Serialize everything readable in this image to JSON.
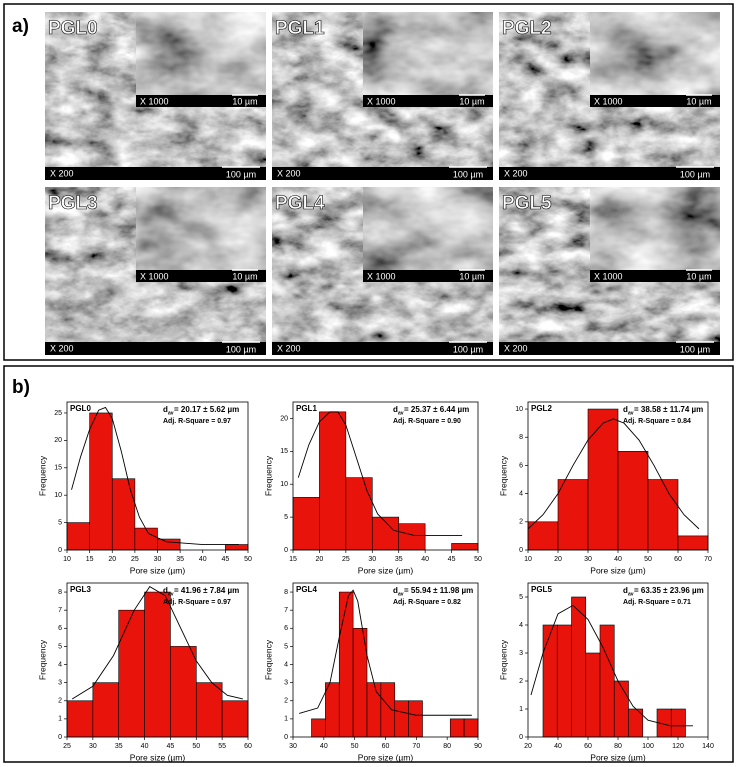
{
  "panels": {
    "a": "a)",
    "b": "b)"
  },
  "panel_a": {
    "images": [
      {
        "name": "PGL0",
        "inset_mag": "X 1000",
        "inset_scale": "10 µm",
        "mag": "X 200",
        "scale": "100 µm"
      },
      {
        "name": "PGL1",
        "inset_mag": "X 1000",
        "inset_scale": "10 µm",
        "mag": "X 200",
        "scale": "100 µm"
      },
      {
        "name": "PGL2",
        "inset_mag": "X 1000",
        "inset_scale": "10 µm",
        "mag": "X 200",
        "scale": "100 µm"
      },
      {
        "name": "PGL3",
        "inset_mag": "X 1000",
        "inset_scale": "10 µm",
        "mag": "X 200",
        "scale": "100 µm"
      },
      {
        "name": "PGL4",
        "inset_mag": "X 1000",
        "inset_scale": "10 µm",
        "mag": "X 200",
        "scale": "100 µm"
      },
      {
        "name": "PGL5",
        "inset_mag": "X 1000",
        "inset_scale": "10 µm",
        "mag": "X 200",
        "scale": "100 µm"
      }
    ]
  },
  "chart_data": [
    {
      "type": "histogram",
      "title": "PGL0",
      "x_label": "Pore size (µm)",
      "y_label": "Frequency",
      "color": "#e8140c",
      "d_symbol": "d",
      "d_subscript": "av",
      "d_text": " = 20.17 ± 5.62 µm",
      "r_square": "Adj. R-Square = 0.97",
      "bins": [
        10,
        15,
        20,
        25,
        30,
        35,
        40,
        45,
        50
      ],
      "values": [
        5,
        25,
        13,
        4,
        2,
        0,
        0,
        1
      ],
      "xlim": [
        10,
        50
      ],
      "xticks": [
        10,
        15,
        20,
        25,
        30,
        35,
        40,
        45,
        50
      ],
      "ylim": [
        0,
        27
      ],
      "yticks": [
        0,
        5,
        10,
        15,
        20,
        25
      ],
      "fit": {
        "color": "#000000",
        "x": [
          11,
          13,
          15,
          17,
          18.5,
          20,
          22,
          24,
          26,
          28,
          32,
          40,
          48
        ],
        "y": [
          11,
          17,
          22,
          25.5,
          26,
          24,
          18,
          11,
          6,
          3,
          1.5,
          1,
          1
        ]
      }
    },
    {
      "type": "histogram",
      "title": "PGL1",
      "x_label": "Pore size (µm)",
      "y_label": "Frequency",
      "color": "#e8140c",
      "d_symbol": "d",
      "d_subscript": "av",
      "d_text": " = 25.37 ± 6.44 µm",
      "r_square": "Adj. R-Square = 0.90",
      "bins": [
        15,
        20,
        25,
        30,
        35,
        40,
        45,
        50
      ],
      "values": [
        8,
        21,
        11,
        5,
        4,
        0,
        1
      ],
      "xlim": [
        15,
        50
      ],
      "xticks": [
        15,
        20,
        25,
        30,
        35,
        40,
        45,
        50
      ],
      "ylim": [
        0,
        22.5
      ],
      "yticks": [
        0,
        5,
        10,
        15,
        20
      ],
      "fit": {
        "color": "#000000",
        "x": [
          16,
          18,
          20,
          22,
          23.5,
          25,
          27,
          29,
          31,
          34,
          38,
          47
        ],
        "y": [
          11,
          16,
          19.5,
          21,
          21,
          19,
          14,
          9,
          5.5,
          3,
          2.2,
          2.2
        ]
      }
    },
    {
      "type": "histogram",
      "title": "PGL2",
      "x_label": "Pore size (µm)",
      "y_label": "Frequency",
      "color": "#e8140c",
      "d_symbol": "d",
      "d_subscript": "av",
      "d_text": " = 38.58 ± 11.74 µm",
      "r_square": "Adj. R-Square = 0.84",
      "bins": [
        10,
        20,
        30,
        40,
        50,
        60,
        70
      ],
      "values": [
        2,
        5,
        10,
        7,
        5,
        1
      ],
      "xlim": [
        10,
        70
      ],
      "xticks": [
        10,
        20,
        30,
        40,
        50,
        60,
        70
      ],
      "ylim": [
        0,
        10.5
      ],
      "yticks": [
        0,
        2,
        4,
        6,
        8,
        10
      ],
      "fit": {
        "color": "#000000",
        "x": [
          10,
          15,
          20,
          25,
          30,
          35,
          38.5,
          42,
          47,
          52,
          57,
          62,
          67
        ],
        "y": [
          1.5,
          2.5,
          4,
          6,
          7.8,
          9,
          9.3,
          9,
          7.8,
          6,
          4,
          2.5,
          1.5
        ]
      }
    },
    {
      "type": "histogram",
      "title": "PGL3",
      "x_label": "Pore size (µm)",
      "y_label": "Frequency",
      "color": "#e8140c",
      "d_symbol": "d",
      "d_subscript": "av",
      "d_text": " = 41.96 ± 7.84 µm",
      "r_square": "Adj. R-Square = 0.97",
      "bins": [
        25,
        30,
        35,
        40,
        45,
        50,
        55,
        60
      ],
      "values": [
        2,
        3,
        7,
        8,
        5,
        3,
        2
      ],
      "xlim": [
        25,
        60
      ],
      "xticks": [
        25,
        30,
        35,
        40,
        45,
        50,
        55,
        60
      ],
      "ylim": [
        0,
        8.5
      ],
      "yticks": [
        0,
        1,
        2,
        3,
        4,
        5,
        6,
        7,
        8
      ],
      "fit": {
        "color": "#000000",
        "x": [
          26,
          30,
          34,
          38,
          41,
          44,
          47,
          50,
          53,
          56,
          59
        ],
        "y": [
          2.1,
          2.8,
          4.5,
          7,
          8.3,
          7.8,
          6,
          4.2,
          3,
          2.3,
          2.1
        ]
      }
    },
    {
      "type": "histogram",
      "title": "PGL4",
      "x_label": "Pore size (µm)",
      "y_label": "Frequency",
      "color": "#e8140c",
      "d_symbol": "d",
      "d_subscript": "av",
      "d_text": " = 55.94 ± 11.98 µm",
      "r_square": "Adj. R-Square = 0.82",
      "bins": [
        36,
        40.5,
        45,
        49.5,
        54,
        58.5,
        63,
        67.5,
        72,
        76.5,
        81,
        85.5,
        90
      ],
      "values": [
        1,
        3,
        8,
        6,
        3,
        3,
        2,
        2,
        0,
        0,
        1,
        1
      ],
      "xlim": [
        30,
        90
      ],
      "xticks": [
        30,
        40,
        50,
        60,
        70,
        80,
        90
      ],
      "ylim": [
        0,
        8.5
      ],
      "yticks": [
        0,
        1,
        2,
        3,
        4,
        5,
        6,
        7,
        8
      ],
      "fit": {
        "color": "#000000",
        "x": [
          32,
          38,
          42,
          45,
          48,
          49.5,
          51,
          54,
          57,
          62,
          70,
          88
        ],
        "y": [
          1.3,
          1.6,
          3,
          5.5,
          7.8,
          8.1,
          7.5,
          4.5,
          2.5,
          1.5,
          1.2,
          1.2
        ]
      }
    },
    {
      "type": "histogram",
      "title": "PGL5",
      "x_label": "Pore size (µm)",
      "y_label": "Frequency",
      "color": "#e8140c",
      "d_symbol": "d",
      "d_subscript": "av",
      "d_text": " = 63.35 ± 23.96 µm",
      "r_square": "Adj. R-Square = 0.71",
      "bins": [
        30,
        39.5,
        49,
        58.5,
        68,
        77.5,
        87,
        96.5,
        106,
        115.5,
        125
      ],
      "values": [
        4,
        4,
        5,
        3,
        4,
        2,
        1,
        0,
        1,
        1
      ],
      "xlim": [
        20,
        140
      ],
      "xticks": [
        20,
        40,
        60,
        80,
        100,
        120,
        140
      ],
      "ylim": [
        0,
        5.5
      ],
      "yticks": [
        0,
        1,
        2,
        3,
        4,
        5
      ],
      "fit": {
        "color": "#000000",
        "x": [
          22,
          30,
          40,
          50,
          60,
          70,
          80,
          90,
          100,
          115,
          130
        ],
        "y": [
          1.5,
          3,
          4.4,
          4.7,
          4.2,
          3.2,
          2,
          1.1,
          0.6,
          0.4,
          0.4
        ]
      }
    }
  ]
}
